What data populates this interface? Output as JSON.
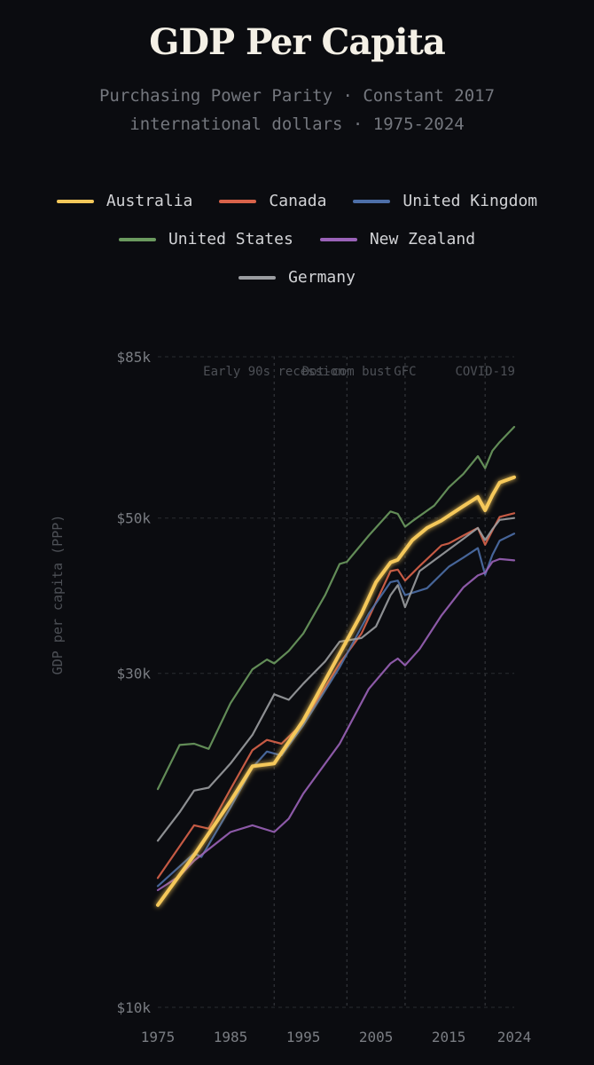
{
  "chart_data": {
    "type": "line",
    "title": "GDP Per Capita",
    "subtitle_lines": [
      "Purchasing Power Parity · Constant 2017",
      "international dollars · 1975-2024"
    ],
    "ylabel": "GDP per capita (PPP)",
    "xlabel": "",
    "xlim": [
      1975,
      2024
    ],
    "ylim": [
      10000,
      85000
    ],
    "x_ticks": [
      1975,
      1985,
      1995,
      2005,
      2015,
      2024
    ],
    "y_ticks": [
      {
        "value": 10000,
        "label": "$10k"
      },
      {
        "value": 30000,
        "label": "$30k"
      },
      {
        "value": 50000,
        "label": "$50k"
      },
      {
        "value": 85000,
        "label": "$85k"
      }
    ],
    "grid": true,
    "legend_position": "top",
    "annotations": [
      {
        "x": 1991,
        "label": "Early 90s recession"
      },
      {
        "x": 2001,
        "label": "Dot-com bust"
      },
      {
        "x": 2009,
        "label": "GFC"
      },
      {
        "x": 2020,
        "label": "COVID-19"
      }
    ],
    "series": [
      {
        "name": "Australia",
        "color": "#f5c85a",
        "emphasis": true,
        "points": [
          [
            1975,
            14000
          ],
          [
            1980,
            16500
          ],
          [
            1985,
            19700
          ],
          [
            1988,
            22100
          ],
          [
            1991,
            22300
          ],
          [
            1995,
            25700
          ],
          [
            2000,
            32000
          ],
          [
            2003,
            36500
          ],
          [
            2005,
            40500
          ],
          [
            2007,
            43200
          ],
          [
            2008,
            43600
          ],
          [
            2010,
            46500
          ],
          [
            2012,
            48400
          ],
          [
            2014,
            49600
          ],
          [
            2015,
            50400
          ],
          [
            2017,
            52000
          ],
          [
            2019,
            53600
          ],
          [
            2020,
            51300
          ],
          [
            2021,
            53900
          ],
          [
            2022,
            56200
          ],
          [
            2024,
            57200
          ]
        ]
      },
      {
        "name": "Canada",
        "color": "#d9634a",
        "points": [
          [
            1975,
            15300
          ],
          [
            1980,
            18200
          ],
          [
            1982,
            18000
          ],
          [
            1985,
            20500
          ],
          [
            1988,
            23300
          ],
          [
            1990,
            24100
          ],
          [
            1992,
            23800
          ],
          [
            1995,
            25500
          ],
          [
            2000,
            31000
          ],
          [
            2003,
            34200
          ],
          [
            2007,
            42000
          ],
          [
            2008,
            42200
          ],
          [
            2009,
            40700
          ],
          [
            2011,
            42700
          ],
          [
            2014,
            45700
          ],
          [
            2015,
            46000
          ],
          [
            2017,
            47200
          ],
          [
            2019,
            48400
          ],
          [
            2020,
            45800
          ],
          [
            2021,
            48000
          ],
          [
            2022,
            50200
          ],
          [
            2024,
            50800
          ]
        ]
      },
      {
        "name": "United Kingdom",
        "color": "#4d6fa8",
        "points": [
          [
            1975,
            14900
          ],
          [
            1980,
            16600
          ],
          [
            1981,
            16400
          ],
          [
            1985,
            19300
          ],
          [
            1988,
            22000
          ],
          [
            1990,
            23200
          ],
          [
            1992,
            22900
          ],
          [
            1995,
            25300
          ],
          [
            2000,
            30600
          ],
          [
            2004,
            36500
          ],
          [
            2007,
            40500
          ],
          [
            2008,
            40700
          ],
          [
            2009,
            38800
          ],
          [
            2012,
            39700
          ],
          [
            2015,
            42600
          ],
          [
            2017,
            43900
          ],
          [
            2019,
            45300
          ],
          [
            2020,
            41500
          ],
          [
            2021,
            44300
          ],
          [
            2022,
            46400
          ],
          [
            2024,
            47500
          ]
        ]
      },
      {
        "name": "United States",
        "color": "#6b9a5f",
        "points": [
          [
            1975,
            20500
          ],
          [
            1978,
            23700
          ],
          [
            1980,
            23800
          ],
          [
            1982,
            23400
          ],
          [
            1985,
            27200
          ],
          [
            1988,
            30400
          ],
          [
            1990,
            31400
          ],
          [
            1991,
            31000
          ],
          [
            1993,
            32300
          ],
          [
            1995,
            34200
          ],
          [
            1998,
            38800
          ],
          [
            2000,
            43000
          ],
          [
            2001,
            43300
          ],
          [
            2004,
            47200
          ],
          [
            2007,
            51100
          ],
          [
            2008,
            50700
          ],
          [
            2009,
            48600
          ],
          [
            2010,
            49500
          ],
          [
            2013,
            52100
          ],
          [
            2015,
            55300
          ],
          [
            2017,
            57800
          ],
          [
            2019,
            61300
          ],
          [
            2020,
            58900
          ],
          [
            2021,
            62400
          ],
          [
            2022,
            64200
          ],
          [
            2024,
            67500
          ]
        ]
      },
      {
        "name": "New Zealand",
        "color": "#9a62b8",
        "points": [
          [
            1975,
            14700
          ],
          [
            1978,
            15400
          ],
          [
            1980,
            16200
          ],
          [
            1985,
            17800
          ],
          [
            1988,
            18200
          ],
          [
            1991,
            17800
          ],
          [
            1993,
            18600
          ],
          [
            1995,
            20200
          ],
          [
            2000,
            23800
          ],
          [
            2004,
            28500
          ],
          [
            2007,
            31000
          ],
          [
            2008,
            31500
          ],
          [
            2009,
            30800
          ],
          [
            2011,
            32500
          ],
          [
            2014,
            36300
          ],
          [
            2017,
            39800
          ],
          [
            2019,
            41400
          ],
          [
            2020,
            41800
          ],
          [
            2021,
            43300
          ],
          [
            2022,
            43700
          ],
          [
            2024,
            43500
          ]
        ]
      },
      {
        "name": "Germany",
        "color": "#9b9da1",
        "points": [
          [
            1975,
            17300
          ],
          [
            1978,
            19000
          ],
          [
            1980,
            20400
          ],
          [
            1982,
            20600
          ],
          [
            1985,
            22300
          ],
          [
            1988,
            24500
          ],
          [
            1991,
            28000
          ],
          [
            1993,
            27500
          ],
          [
            1995,
            29000
          ],
          [
            1998,
            31200
          ],
          [
            2000,
            33300
          ],
          [
            2003,
            33700
          ],
          [
            2005,
            35000
          ],
          [
            2007,
            38800
          ],
          [
            2008,
            40100
          ],
          [
            2009,
            37300
          ],
          [
            2011,
            42000
          ],
          [
            2014,
            44300
          ],
          [
            2017,
            46700
          ],
          [
            2019,
            48400
          ],
          [
            2020,
            46500
          ],
          [
            2021,
            48200
          ],
          [
            2022,
            49700
          ],
          [
            2024,
            50000
          ]
        ]
      }
    ]
  }
}
